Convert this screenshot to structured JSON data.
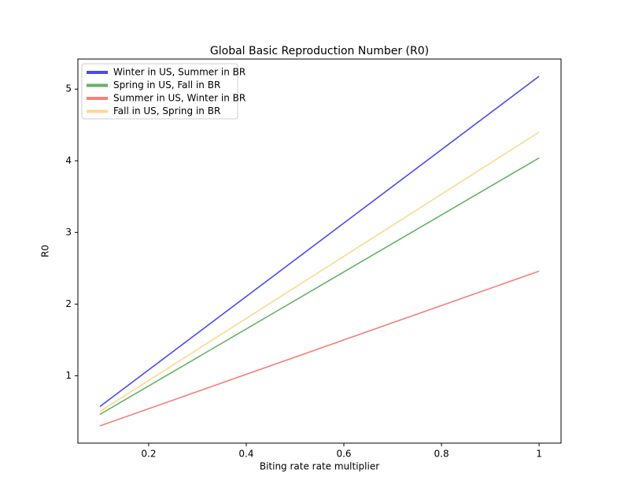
{
  "chart_data": {
    "type": "line",
    "title": "Global Basic Reproduction Number (R0)",
    "xlabel": "Biting rate rate multiplier",
    "ylabel": "R0",
    "x": [
      0.1,
      1.0
    ],
    "series": [
      {
        "name": "Winter in US, Summer in BR",
        "color": "#4a4af5",
        "values": [
          0.57,
          5.18
        ]
      },
      {
        "name": "Spring in US, Fall in BR",
        "color": "#66b266",
        "values": [
          0.46,
          4.04
        ]
      },
      {
        "name": "Summer in US, Winter in BR",
        "color": "#f6807c",
        "values": [
          0.3,
          2.46
        ]
      },
      {
        "name": "Fall in US, Spring in BR",
        "color": "#fbd98f",
        "values": [
          0.5,
          4.4
        ]
      }
    ],
    "xlim": [
      0.055,
      1.045
    ],
    "xticks": [
      0.2,
      0.4,
      0.6,
      0.8,
      1.0
    ],
    "ylim": [
      0.06,
      5.42
    ],
    "yticks": [
      1,
      2,
      3,
      4,
      5
    ],
    "legend": "upper-left",
    "grid": false
  }
}
